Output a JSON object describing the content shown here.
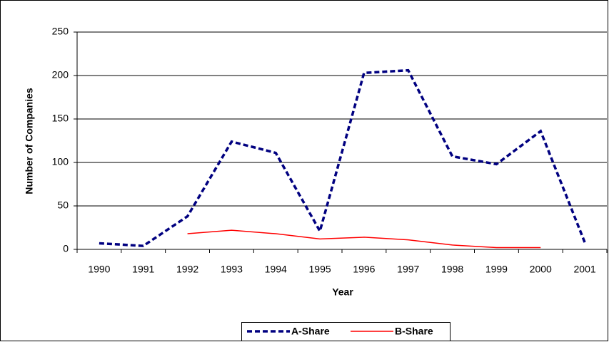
{
  "chart_data": {
    "type": "line",
    "x_label": "Year",
    "y_label": "Number of Companies",
    "categories": [
      "1990",
      "1991",
      "1992",
      "1993",
      "1994",
      "1995",
      "1996",
      "1997",
      "1998",
      "1999",
      "2000",
      "2001"
    ],
    "series": [
      {
        "name": "A-Share",
        "color": "#000080",
        "dashed": true,
        "values": [
          7,
          4,
          38,
          124,
          111,
          21,
          203,
          206,
          107,
          98,
          136,
          8
        ]
      },
      {
        "name": "B-Share",
        "color": "#ff0000",
        "dashed": false,
        "values": [
          null,
          null,
          18,
          22,
          18,
          12,
          14,
          11,
          5,
          2,
          2,
          null
        ]
      }
    ],
    "ylim": [
      0,
      250
    ],
    "yticks": [
      0,
      50,
      100,
      150,
      200,
      250
    ],
    "grid": true,
    "legend": "bottom"
  }
}
